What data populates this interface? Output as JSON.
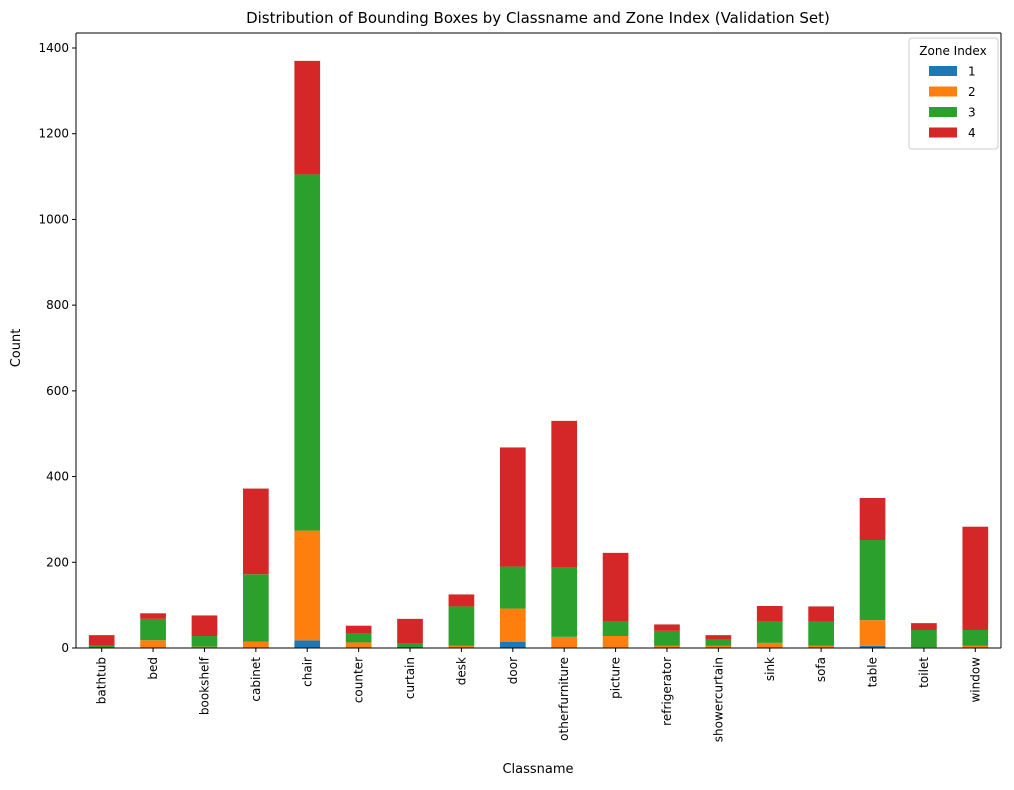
{
  "chart_data": {
    "type": "bar",
    "stacked": true,
    "title": "Distribution of Bounding Boxes by Classname and Zone Index (Validation Set)",
    "xlabel": "Classname",
    "ylabel": "Count",
    "ylim": [
      0,
      1435
    ],
    "yticks": [
      0,
      200,
      400,
      600,
      800,
      1000,
      1200,
      1400
    ],
    "grid": false,
    "legend": {
      "title": "Zone Index",
      "position": "top-right"
    },
    "categories": [
      "bathtub",
      "bed",
      "bookshelf",
      "cabinet",
      "chair",
      "counter",
      "curtain",
      "desk",
      "door",
      "otherfurniture",
      "picture",
      "refrigerator",
      "showercurtain",
      "sink",
      "sofa",
      "table",
      "toilet",
      "window"
    ],
    "series": [
      {
        "name": "1",
        "color": "#1f77b4",
        "values": [
          0,
          0,
          0,
          0,
          18,
          0,
          0,
          0,
          14,
          0,
          0,
          0,
          0,
          0,
          0,
          5,
          0,
          0
        ]
      },
      {
        "name": "2",
        "color": "#ff7f0e",
        "values": [
          0,
          18,
          3,
          15,
          256,
          13,
          0,
          5,
          78,
          26,
          28,
          5,
          5,
          12,
          5,
          60,
          2,
          5
        ]
      },
      {
        "name": "3",
        "color": "#2ca02c",
        "values": [
          5,
          50,
          25,
          157,
          831,
          22,
          10,
          92,
          98,
          163,
          35,
          35,
          15,
          51,
          56,
          187,
          40,
          37
        ]
      },
      {
        "name": "4",
        "color": "#d62728",
        "values": [
          25,
          13,
          48,
          200,
          265,
          17,
          58,
          28,
          278,
          341,
          159,
          15,
          10,
          35,
          36,
          98,
          16,
          241
        ]
      }
    ]
  }
}
